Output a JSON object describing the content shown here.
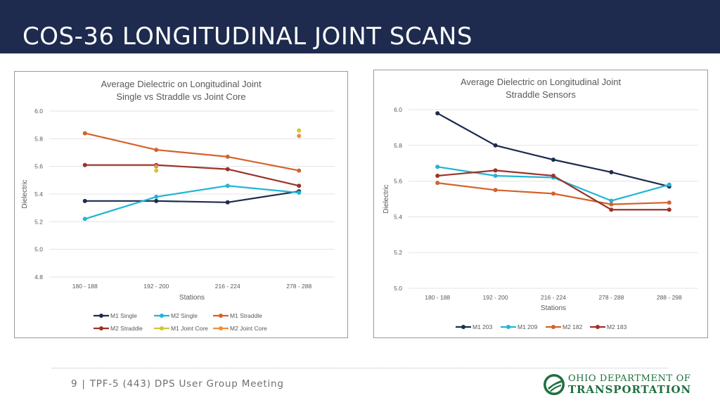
{
  "slide": {
    "title": "COS-36 LONGITUDINAL JOINT SCANS",
    "page_number": "9",
    "footer_text": "TPF-5 (443) DPS User Group Meeting",
    "footer_separator": "|",
    "header_color": "#1e2b4f"
  },
  "logo": {
    "line1": "OHIO DEPARTMENT OF",
    "line2": "TRANSPORTATION",
    "color": "#1f6f3f"
  },
  "chart_data": [
    {
      "type": "line",
      "title_lines": [
        "Average Dielectric on Longitudinal Joint",
        "Single vs Straddle vs Joint Core"
      ],
      "xlabel": "Stations",
      "ylabel": "Dielectric",
      "categories": [
        "180 - 188",
        "192 - 200",
        "216 - 224",
        "278 - 288"
      ],
      "ylim": [
        4.8,
        6.0
      ],
      "yticks": [
        4.8,
        5.0,
        5.2,
        5.4,
        5.6,
        5.8,
        6.0
      ],
      "grid": true,
      "legend_position": "bottom",
      "series": [
        {
          "name": "M1 Single",
          "color": "#1e2b4f",
          "values": [
            5.35,
            5.35,
            5.34,
            5.42
          ],
          "line": true
        },
        {
          "name": "M2 Single",
          "color": "#1fb5d6",
          "values": [
            5.22,
            5.38,
            5.46,
            5.41
          ],
          "line": true
        },
        {
          "name": "M1 Straddle",
          "color": "#d4622c",
          "values": [
            5.84,
            5.72,
            5.67,
            5.57
          ],
          "line": true
        },
        {
          "name": "M2 Straddle",
          "color": "#9c3229",
          "values": [
            5.61,
            5.61,
            5.58,
            5.46
          ],
          "line": true
        },
        {
          "name": "M1 Joint Core",
          "color": "#cfc63a",
          "values": [
            null,
            5.57,
            null,
            5.86
          ],
          "line": false
        },
        {
          "name": "M2 Joint Core",
          "color": "#ee8f3c",
          "values": [
            null,
            5.6,
            null,
            5.82
          ],
          "line": false
        }
      ]
    },
    {
      "type": "line",
      "title_lines": [
        "Average Dielectric on Longitudinal Joint",
        "Straddle Sensors"
      ],
      "xlabel": "Stations",
      "ylabel": "Dielectric",
      "categories": [
        "180 - 188",
        "192 - 200",
        "216 - 224",
        "278 - 288",
        "288 - 298"
      ],
      "ylim": [
        5.0,
        6.0
      ],
      "yticks": [
        5.0,
        5.2,
        5.4,
        5.6,
        5.8,
        6.0
      ],
      "grid": true,
      "legend_position": "bottom",
      "series": [
        {
          "name": "M1 203",
          "color": "#1e2b4f",
          "values": [
            5.98,
            5.8,
            5.72,
            5.65,
            5.57
          ],
          "line": true
        },
        {
          "name": "M1 209",
          "color": "#1fb5d6",
          "values": [
            5.68,
            5.63,
            5.62,
            5.49,
            5.58
          ],
          "line": true
        },
        {
          "name": "M2 182",
          "color": "#d4622c",
          "values": [
            5.59,
            5.55,
            5.53,
            5.47,
            5.48
          ],
          "line": true
        },
        {
          "name": "M2 183",
          "color": "#9c3229",
          "values": [
            5.63,
            5.66,
            5.63,
            5.44,
            5.44
          ],
          "line": true
        }
      ]
    }
  ]
}
